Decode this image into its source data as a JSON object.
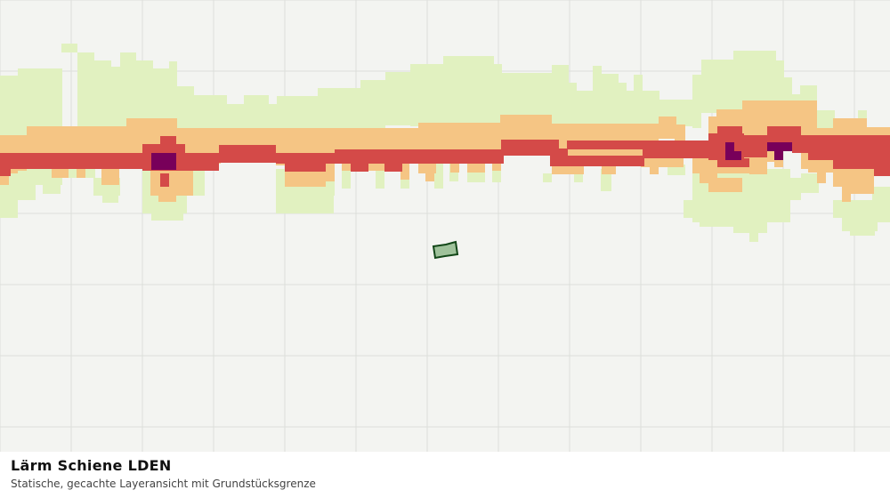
{
  "map": {
    "layer_title": "Lärm Schiene LDEN",
    "layer_subtitle": "Statische, gecachte Layeransicht mit Grundstücksgrenze",
    "colors": {
      "background": "#f3f4f1",
      "grid": "#dcdedb",
      "level_1": "#e1f1c0",
      "level_2": "#f5c584",
      "level_3": "#d44a48",
      "level_4": "#78005a",
      "parcel_fill": "#9fc29b",
      "parcel_stroke": "#124718"
    }
  }
}
